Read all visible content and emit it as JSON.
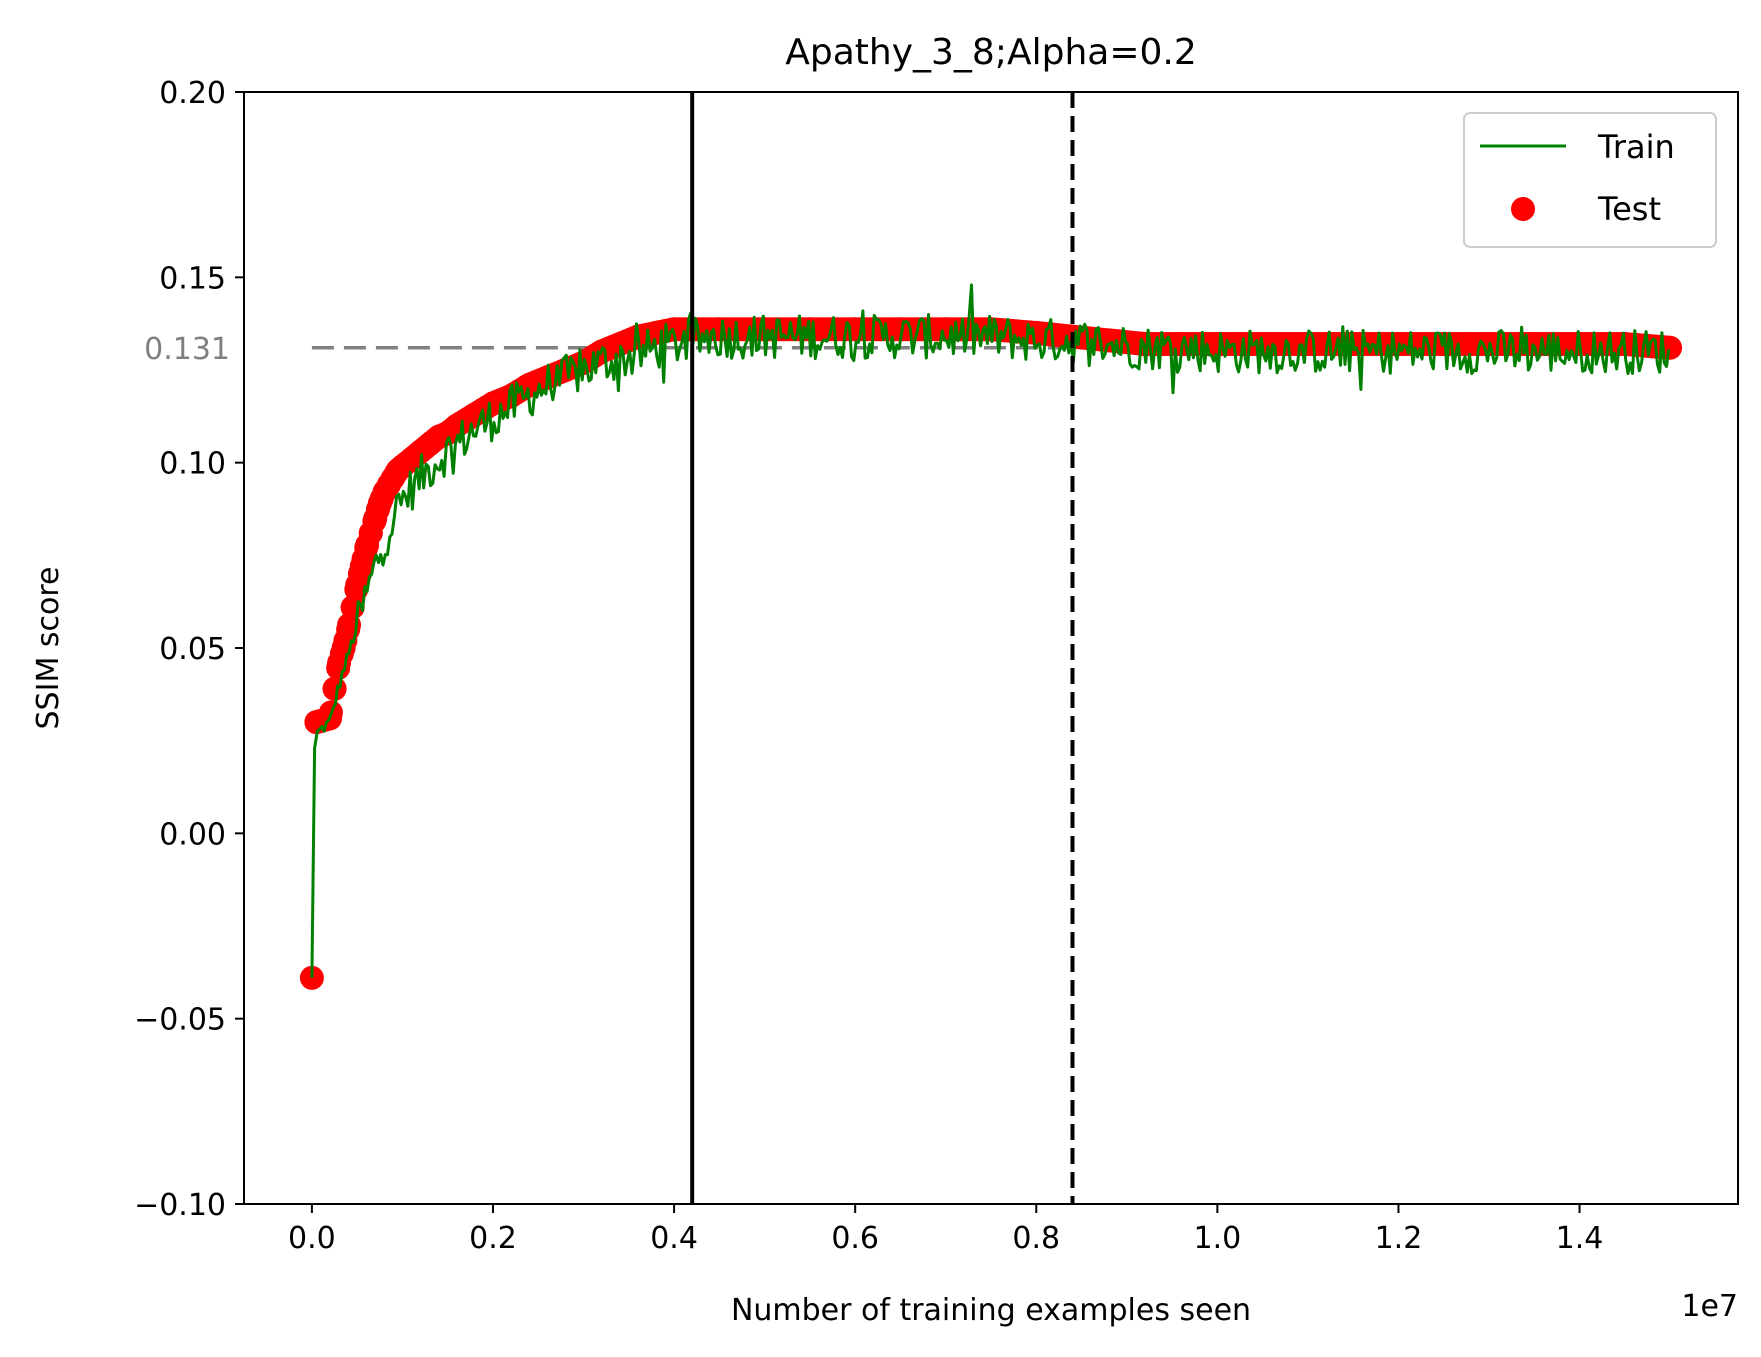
{
  "chart_data": {
    "type": "line",
    "title": "Apathy_3_8;Alpha=0.2",
    "xlabel": "Number of training examples seen",
    "ylabel": "SSIM score",
    "x_offset_label": "1e7",
    "xlim": [
      -0.075,
      1.575
    ],
    "ylim": [
      -0.1,
      0.2
    ],
    "x_ticks": [
      0.0,
      0.2,
      0.4,
      0.6,
      0.8,
      1.0,
      1.2,
      1.4
    ],
    "x_tick_labels": [
      "0.0",
      "0.2",
      "0.4",
      "0.6",
      "0.8",
      "1.0",
      "1.2",
      "1.4"
    ],
    "y_ticks": [
      -0.1,
      -0.05,
      0.0,
      0.05,
      0.1,
      0.15,
      0.2
    ],
    "y_tick_labels": [
      "−0.10",
      "−0.05",
      "0.00",
      "0.05",
      "0.10",
      "0.15",
      "0.20"
    ],
    "grid": false,
    "legend": {
      "position": "top-right",
      "entries": [
        "Train",
        "Test"
      ]
    },
    "reference_lines": {
      "hline": {
        "y": 0.131,
        "label": "0.131",
        "color": "#808080",
        "style": "dashed",
        "x_range": [
          0.0,
          1.5
        ]
      },
      "vline_solid": {
        "x": 0.42,
        "color": "#000000"
      },
      "vline_dashed": {
        "x": 0.84,
        "color": "#000000"
      }
    },
    "series": [
      {
        "name": "Train",
        "kind": "line",
        "color": "#008000",
        "x": [
          0.0,
          0.003,
          0.006,
          0.01,
          0.02,
          0.03,
          0.04,
          0.05,
          0.06,
          0.07,
          0.08,
          0.09,
          0.1,
          0.12,
          0.14,
          0.16,
          0.18,
          0.2,
          0.22,
          0.24,
          0.26,
          0.28,
          0.3,
          0.32,
          0.34,
          0.36,
          0.38,
          0.4,
          0.42,
          0.44,
          0.46,
          0.48,
          0.5,
          0.55,
          0.6,
          0.65,
          0.7,
          0.75,
          0.8,
          0.84,
          0.88,
          0.92,
          0.96,
          1.0,
          1.05,
          1.1,
          1.15,
          1.2,
          1.25,
          1.3,
          1.35,
          1.4,
          1.45,
          1.5
        ],
        "y": [
          -0.039,
          0.023,
          0.027,
          0.028,
          0.03,
          0.04,
          0.048,
          0.056,
          0.064,
          0.072,
          0.079,
          0.085,
          0.09,
          0.096,
          0.101,
          0.105,
          0.109,
          0.112,
          0.115,
          0.118,
          0.121,
          0.123,
          0.125,
          0.127,
          0.128,
          0.129,
          0.131,
          0.132,
          0.133,
          0.134,
          0.134,
          0.134,
          0.134,
          0.134,
          0.134,
          0.134,
          0.134,
          0.134,
          0.133,
          0.133,
          0.132,
          0.131,
          0.131,
          0.13,
          0.13,
          0.13,
          0.13,
          0.13,
          0.13,
          0.13,
          0.13,
          0.13,
          0.13,
          0.13
        ],
        "noise_amplitude": 0.006
      },
      {
        "name": "Test",
        "kind": "scatter",
        "color": "#ff0000",
        "x": [
          0.0,
          0.005,
          0.02,
          0.025,
          0.03,
          0.035,
          0.04,
          0.045,
          0.05,
          0.055,
          0.06,
          0.065,
          0.07,
          0.075,
          0.08,
          0.085,
          0.09,
          0.095,
          0.1,
          0.11,
          0.12,
          0.13,
          0.14,
          0.15,
          0.16,
          0.18,
          0.2,
          0.22,
          0.24,
          0.26,
          0.28,
          0.3,
          0.32,
          0.34,
          0.36,
          0.38,
          0.4,
          0.42,
          0.45,
          0.5,
          0.55,
          0.6,
          0.65,
          0.7,
          0.75,
          0.8,
          0.84,
          0.88,
          0.92,
          0.96,
          1.0,
          1.05,
          1.1,
          1.15,
          1.2,
          1.25,
          1.3,
          1.35,
          1.4,
          1.45,
          1.5
        ],
        "y": [
          -0.039,
          0.03,
          0.031,
          0.039,
          0.046,
          0.05,
          0.055,
          0.061,
          0.067,
          0.072,
          0.077,
          0.081,
          0.085,
          0.089,
          0.092,
          0.094,
          0.096,
          0.098,
          0.099,
          0.101,
          0.103,
          0.105,
          0.107,
          0.108,
          0.11,
          0.113,
          0.116,
          0.118,
          0.121,
          0.123,
          0.125,
          0.127,
          0.13,
          0.132,
          0.134,
          0.135,
          0.136,
          0.136,
          0.136,
          0.136,
          0.136,
          0.136,
          0.136,
          0.136,
          0.136,
          0.135,
          0.134,
          0.133,
          0.132,
          0.132,
          0.132,
          0.132,
          0.132,
          0.132,
          0.132,
          0.132,
          0.132,
          0.132,
          0.132,
          0.132,
          0.131
        ]
      }
    ]
  }
}
